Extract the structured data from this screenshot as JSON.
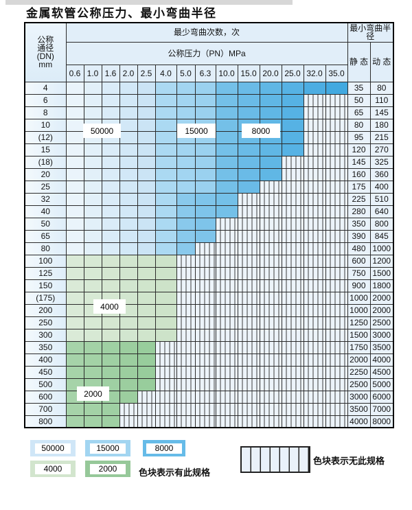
{
  "title": "金属软管公称压力、最小弯曲半径",
  "table": {
    "dn_header_lines": [
      "公称",
      "通径",
      "(DN)",
      "mm"
    ],
    "bend_cycles_header": "最少弯曲次数，次",
    "pressure_header": "公称压力（PN）MPa",
    "radius_header": "最小弯曲半径",
    "static_header": "静 态",
    "dynamic_header": "动 态",
    "pressure_columns": [
      "0.6",
      "1.0",
      "1.6",
      "2.0",
      "2.5",
      "4.0",
      "5.0",
      "6.3",
      "10.0",
      "15.0",
      "20.0",
      "25.0",
      "32.0",
      "35.0"
    ],
    "cell_code_meaning": {
      "L": "50000次",
      "M": "15000次",
      "D": "8000次",
      "g": "4000次",
      "G": "2000次",
      "x": "无此规格"
    },
    "rows": [
      {
        "dn": "4",
        "cells": "LLLLLMMMDDDDDD",
        "static": "35",
        "dynamic": "80"
      },
      {
        "dn": "6",
        "cells": "LLLLLMMMDDDDxx",
        "static": "50",
        "dynamic": "110"
      },
      {
        "dn": "8",
        "cells": "LLLLLMMMDDDDxx",
        "static": "65",
        "dynamic": "145"
      },
      {
        "dn": "10",
        "cells": "LLLLLMMMDDDDxx",
        "static": "80",
        "dynamic": "180"
      },
      {
        "dn": "(12)",
        "cells": "LLLLLMMMDDDDxx",
        "static": "95",
        "dynamic": "215"
      },
      {
        "dn": "15",
        "cells": "LLLLLMMMDDDDxx",
        "static": "120",
        "dynamic": "270"
      },
      {
        "dn": "(18)",
        "cells": "LLLLLMMMDDDxxx",
        "static": "145",
        "dynamic": "325"
      },
      {
        "dn": "20",
        "cells": "LLLLLMMMDDDxxx",
        "static": "160",
        "dynamic": "360"
      },
      {
        "dn": "25",
        "cells": "LLLLLMMMDDxxxx",
        "static": "175",
        "dynamic": "400"
      },
      {
        "dn": "32",
        "cells": "LLLLLMDDDxxxxx",
        "static": "225",
        "dynamic": "510"
      },
      {
        "dn": "40",
        "cells": "LLLLLMDDDxxxxx",
        "static": "280",
        "dynamic": "640"
      },
      {
        "dn": "50",
        "cells": "LLLLLMDDxxxxxx",
        "static": "350",
        "dynamic": "800"
      },
      {
        "dn": "65",
        "cells": "LLLLLMDDxxxxxx",
        "static": "390",
        "dynamic": "845"
      },
      {
        "dn": "80",
        "cells": "LLLLLMDxxxxxxx",
        "static": "480",
        "dynamic": "1000"
      },
      {
        "dn": "100",
        "cells": "ggggggxxxxxxxx",
        "static": "600",
        "dynamic": "1200"
      },
      {
        "dn": "125",
        "cells": "ggggggxxxxxxxx",
        "static": "750",
        "dynamic": "1500"
      },
      {
        "dn": "150",
        "cells": "ggggggxxxxxxxx",
        "static": "900",
        "dynamic": "1800"
      },
      {
        "dn": "(175)",
        "cells": "ggggggxxxxxxxx",
        "static": "1000",
        "dynamic": "2000"
      },
      {
        "dn": "200",
        "cells": "ggggggxxxxxxxx",
        "static": "1000",
        "dynamic": "2000"
      },
      {
        "dn": "250",
        "cells": "ggggggxxxxxxxx",
        "static": "1250",
        "dynamic": "2500"
      },
      {
        "dn": "300",
        "cells": "ggggggxxxxxxxx",
        "static": "1500",
        "dynamic": "3000"
      },
      {
        "dn": "350",
        "cells": "GGGGGxxxxxxxxx",
        "static": "1750",
        "dynamic": "3500"
      },
      {
        "dn": "400",
        "cells": "GGGGGxxxxxxxxx",
        "static": "2000",
        "dynamic": "4000"
      },
      {
        "dn": "450",
        "cells": "GGGGGxxxxxxxxx",
        "static": "2250",
        "dynamic": "4500"
      },
      {
        "dn": "500",
        "cells": "GGGGGxxxxxxxxx",
        "static": "2500",
        "dynamic": "5000"
      },
      {
        "dn": "600",
        "cells": "GGGGxxxxxxxxxx",
        "static": "3000",
        "dynamic": "6000"
      },
      {
        "dn": "700",
        "cells": "GGGxxxxxxxxxxx",
        "static": "3500",
        "dynamic": "7000"
      },
      {
        "dn": "800",
        "cells": "GGGxxxxxxxxxxx",
        "static": "4000",
        "dynamic": "8000"
      }
    ]
  },
  "overlays": [
    {
      "id": "50000",
      "text": "50000"
    },
    {
      "id": "15000",
      "text": "15000"
    },
    {
      "id": "8000",
      "text": "8000"
    },
    {
      "id": "4000",
      "text": "4000"
    },
    {
      "id": "2000",
      "text": "2000"
    }
  ],
  "legend": {
    "items": [
      {
        "label": "50000",
        "color": "#cfe6f7"
      },
      {
        "label": "15000",
        "color": "#a2d5f1"
      },
      {
        "label": "8000",
        "color": "#66bbe8"
      },
      {
        "label": "4000",
        "color": "#d2e5cd"
      },
      {
        "label": "2000",
        "color": "#96c899"
      }
    ],
    "available_text": "色块表示有此规格",
    "unavailable_text": "色块表示无此规格"
  }
}
